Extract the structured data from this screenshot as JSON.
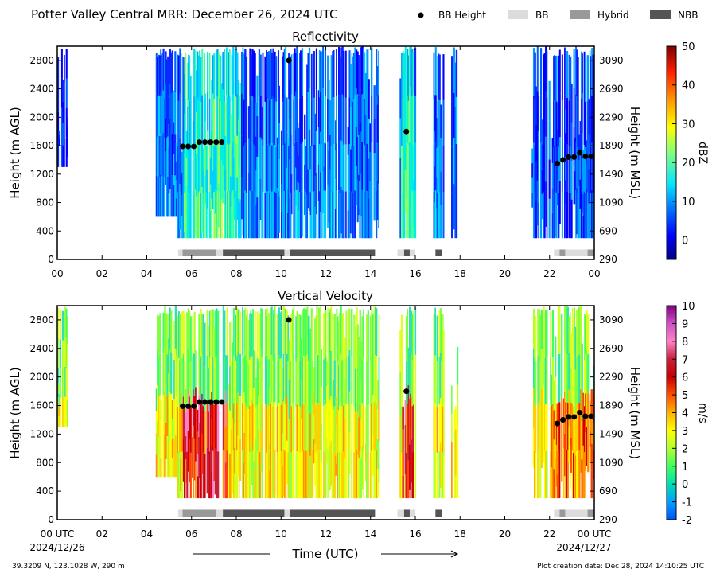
{
  "header": {
    "title": "Potter Valley Central MRR:  December 26, 2024 UTC",
    "legend": [
      {
        "label": "BB Height",
        "symbol": "dot",
        "color": "#000000"
      },
      {
        "label": "BB",
        "symbol": "box",
        "color": "#dcdcdc"
      },
      {
        "label": "Hybrid",
        "symbol": "box",
        "color": "#999999"
      },
      {
        "label": "NBB",
        "symbol": "box",
        "color": "#555555"
      }
    ]
  },
  "footer": {
    "location": "39.3209 N, 123.1028 W, 290 m",
    "creation": "Plot creation date: Dec 28, 2024 14:10:25 UTC",
    "xlabel": "Time (UTC)",
    "start_label": "00 UTC",
    "start_date": "2024/12/26",
    "end_label": "00 UTC",
    "end_date": "2024/12/27"
  },
  "chart_data": [
    {
      "type": "heatmap",
      "title": "Reflectivity",
      "ylabel": "Height (m AGL)",
      "ylabel_right": "Height (m MSL)",
      "yticks": [
        0,
        400,
        800,
        1200,
        1600,
        2000,
        2400,
        2800
      ],
      "yticks_right": [
        290,
        690,
        1090,
        1490,
        1890,
        2290,
        2690,
        3090
      ],
      "xticks": [
        "00",
        "02",
        "04",
        "06",
        "08",
        "10",
        "12",
        "14",
        "16",
        "18",
        "20",
        "22",
        "00"
      ],
      "xlim": [
        0,
        24
      ],
      "ylim": [
        0,
        3000
      ],
      "colorbar": {
        "label": "dBZ",
        "min": -5,
        "max": 50,
        "ticks": [
          0,
          10,
          20,
          30,
          40,
          50
        ],
        "tick_labels": [
          "0",
          "10",
          "20",
          "30",
          "40",
          "50"
        ]
      }
    },
    {
      "type": "heatmap",
      "title": "Vertical Velocity",
      "ylabel": "Height (m AGL)",
      "ylabel_right": "Height (m MSL)",
      "yticks": [
        0,
        400,
        800,
        1200,
        1600,
        2000,
        2400,
        2800
      ],
      "yticks_right": [
        290,
        690,
        1090,
        1490,
        1890,
        2290,
        2690,
        3090
      ],
      "xticks": [
        "",
        "02",
        "04",
        "06",
        "08",
        "10",
        "12",
        "14",
        "16",
        "18",
        "20",
        "22",
        ""
      ],
      "xlim": [
        0,
        24
      ],
      "ylim": [
        0,
        3000
      ],
      "colorbar": {
        "label": "m/s",
        "min": -2,
        "max": 10,
        "ticks": [
          -2,
          -1,
          0,
          1,
          2,
          3,
          4,
          5,
          6,
          7,
          8,
          9,
          10
        ],
        "tick_labels": [
          "-2",
          "-1",
          "0",
          "1",
          "2",
          "3",
          "4",
          "5",
          "6",
          "7",
          "8",
          "9",
          "10"
        ]
      }
    }
  ],
  "bb_height": [
    {
      "t": 5.6,
      "h": 1590
    },
    {
      "t": 5.85,
      "h": 1590
    },
    {
      "t": 6.1,
      "h": 1590
    },
    {
      "t": 6.35,
      "h": 1650
    },
    {
      "t": 6.6,
      "h": 1650
    },
    {
      "t": 6.85,
      "h": 1650
    },
    {
      "t": 7.1,
      "h": 1650
    },
    {
      "t": 7.35,
      "h": 1650
    },
    {
      "t": 10.35,
      "h": 2800
    },
    {
      "t": 15.6,
      "h": 1800
    },
    {
      "t": 22.35,
      "h": 1350
    },
    {
      "t": 22.6,
      "h": 1400
    },
    {
      "t": 22.85,
      "h": 1440
    },
    {
      "t": 23.1,
      "h": 1440
    },
    {
      "t": 23.35,
      "h": 1500
    },
    {
      "t": 23.6,
      "h": 1450
    },
    {
      "t": 23.85,
      "h": 1450
    }
  ],
  "bb_type": [
    {
      "start": 5.4,
      "end": 5.6,
      "type": "BB"
    },
    {
      "start": 5.6,
      "end": 7.1,
      "type": "Hybrid"
    },
    {
      "start": 7.1,
      "end": 7.4,
      "type": "BB"
    },
    {
      "start": 7.4,
      "end": 10.15,
      "type": "NBB"
    },
    {
      "start": 10.15,
      "end": 10.4,
      "type": "BB"
    },
    {
      "start": 10.4,
      "end": 14.2,
      "type": "NBB"
    },
    {
      "start": 15.2,
      "end": 15.5,
      "type": "BB"
    },
    {
      "start": 15.5,
      "end": 15.75,
      "type": "NBB"
    },
    {
      "start": 15.75,
      "end": 16.0,
      "type": "BB"
    },
    {
      "start": 16.9,
      "end": 17.2,
      "type": "NBB"
    },
    {
      "start": 22.2,
      "end": 22.45,
      "type": "BB"
    },
    {
      "start": 22.45,
      "end": 22.7,
      "type": "Hybrid"
    },
    {
      "start": 22.7,
      "end": 23.7,
      "type": "BB"
    },
    {
      "start": 23.7,
      "end": 24.0,
      "type": "Hybrid"
    }
  ],
  "precip_periods": [
    {
      "start": 0.0,
      "end": 0.45,
      "top": 3000,
      "bottom": 1300
    },
    {
      "start": 4.4,
      "end": 5.35,
      "top": 3000,
      "bottom": 600
    },
    {
      "start": 5.35,
      "end": 14.35,
      "top": 3000,
      "bottom": 300
    },
    {
      "start": 15.3,
      "end": 16.0,
      "top": 3000,
      "bottom": 300
    },
    {
      "start": 16.8,
      "end": 17.25,
      "top": 3000,
      "bottom": 300
    },
    {
      "start": 17.6,
      "end": 17.9,
      "top": 3000,
      "bottom": 300
    },
    {
      "start": 21.2,
      "end": 24.0,
      "top": 3000,
      "bottom": 300
    }
  ]
}
